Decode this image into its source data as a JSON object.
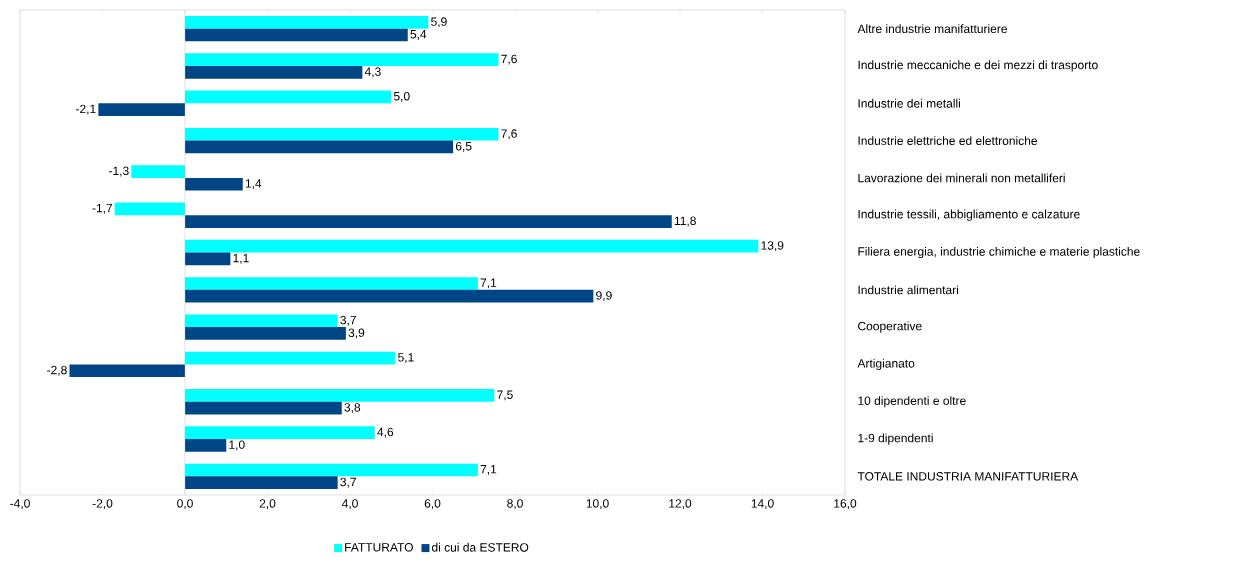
{
  "chart_data": {
    "type": "bar",
    "orientation": "horizontal",
    "categories": [
      "Altre industrie manifatturiere",
      "Industrie meccaniche e dei mezzi di trasporto",
      "Industrie dei metalli",
      "Industrie elettriche ed elettroniche",
      "Lavorazione dei minerali non metalliferi",
      "Industrie tessili, abbigliamento e calzature",
      "Filiera energia, industrie chimiche e materie plastiche",
      "Industrie alimentari",
      "Cooperative",
      "Artigianato",
      "10 dipendenti e oltre",
      "1-9 dipendenti",
      "TOTALE INDUSTRIA MANIFATTURIERA"
    ],
    "series": [
      {
        "name": "FATTURATO",
        "color": "#00ffff",
        "values": [
          5.9,
          7.6,
          5.0,
          7.6,
          -1.3,
          -1.7,
          13.9,
          7.1,
          3.7,
          5.1,
          7.5,
          4.6,
          7.1
        ],
        "value_labels": [
          "5,9",
          "7,6",
          "5,0",
          "7,6",
          "-1,3",
          "-1,7",
          "13,9",
          "7,1",
          "3,7",
          "5,1",
          "7,5",
          "4,6",
          "7,1"
        ]
      },
      {
        "name": "di cui da ESTERO",
        "color": "#004586",
        "values": [
          5.4,
          4.3,
          -2.1,
          6.5,
          1.4,
          11.8,
          1.1,
          9.9,
          3.9,
          -2.8,
          3.8,
          1.0,
          3.7
        ],
        "value_labels": [
          "5,4",
          "4,3",
          "-2,1",
          "6,5",
          "1,4",
          "11,8",
          "1,1",
          "9,9",
          "3,9",
          "-2,8",
          "3,8",
          "1,0",
          "3,7"
        ]
      }
    ],
    "xlim": [
      -4,
      16
    ],
    "xticks": [
      {
        "value": -4,
        "label": "-4,0"
      },
      {
        "value": -2,
        "label": "-2,0"
      },
      {
        "value": 0,
        "label": "0,0"
      },
      {
        "value": 2,
        "label": "2,0"
      },
      {
        "value": 4,
        "label": "4,0"
      },
      {
        "value": 6,
        "label": "6,0"
      },
      {
        "value": 8,
        "label": "8,0"
      },
      {
        "value": 10,
        "label": "10,0"
      },
      {
        "value": 12,
        "label": "12,0"
      },
      {
        "value": 14,
        "label": "14,0"
      },
      {
        "value": 16,
        "label": "16,0"
      }
    ],
    "legend": "bottom"
  }
}
